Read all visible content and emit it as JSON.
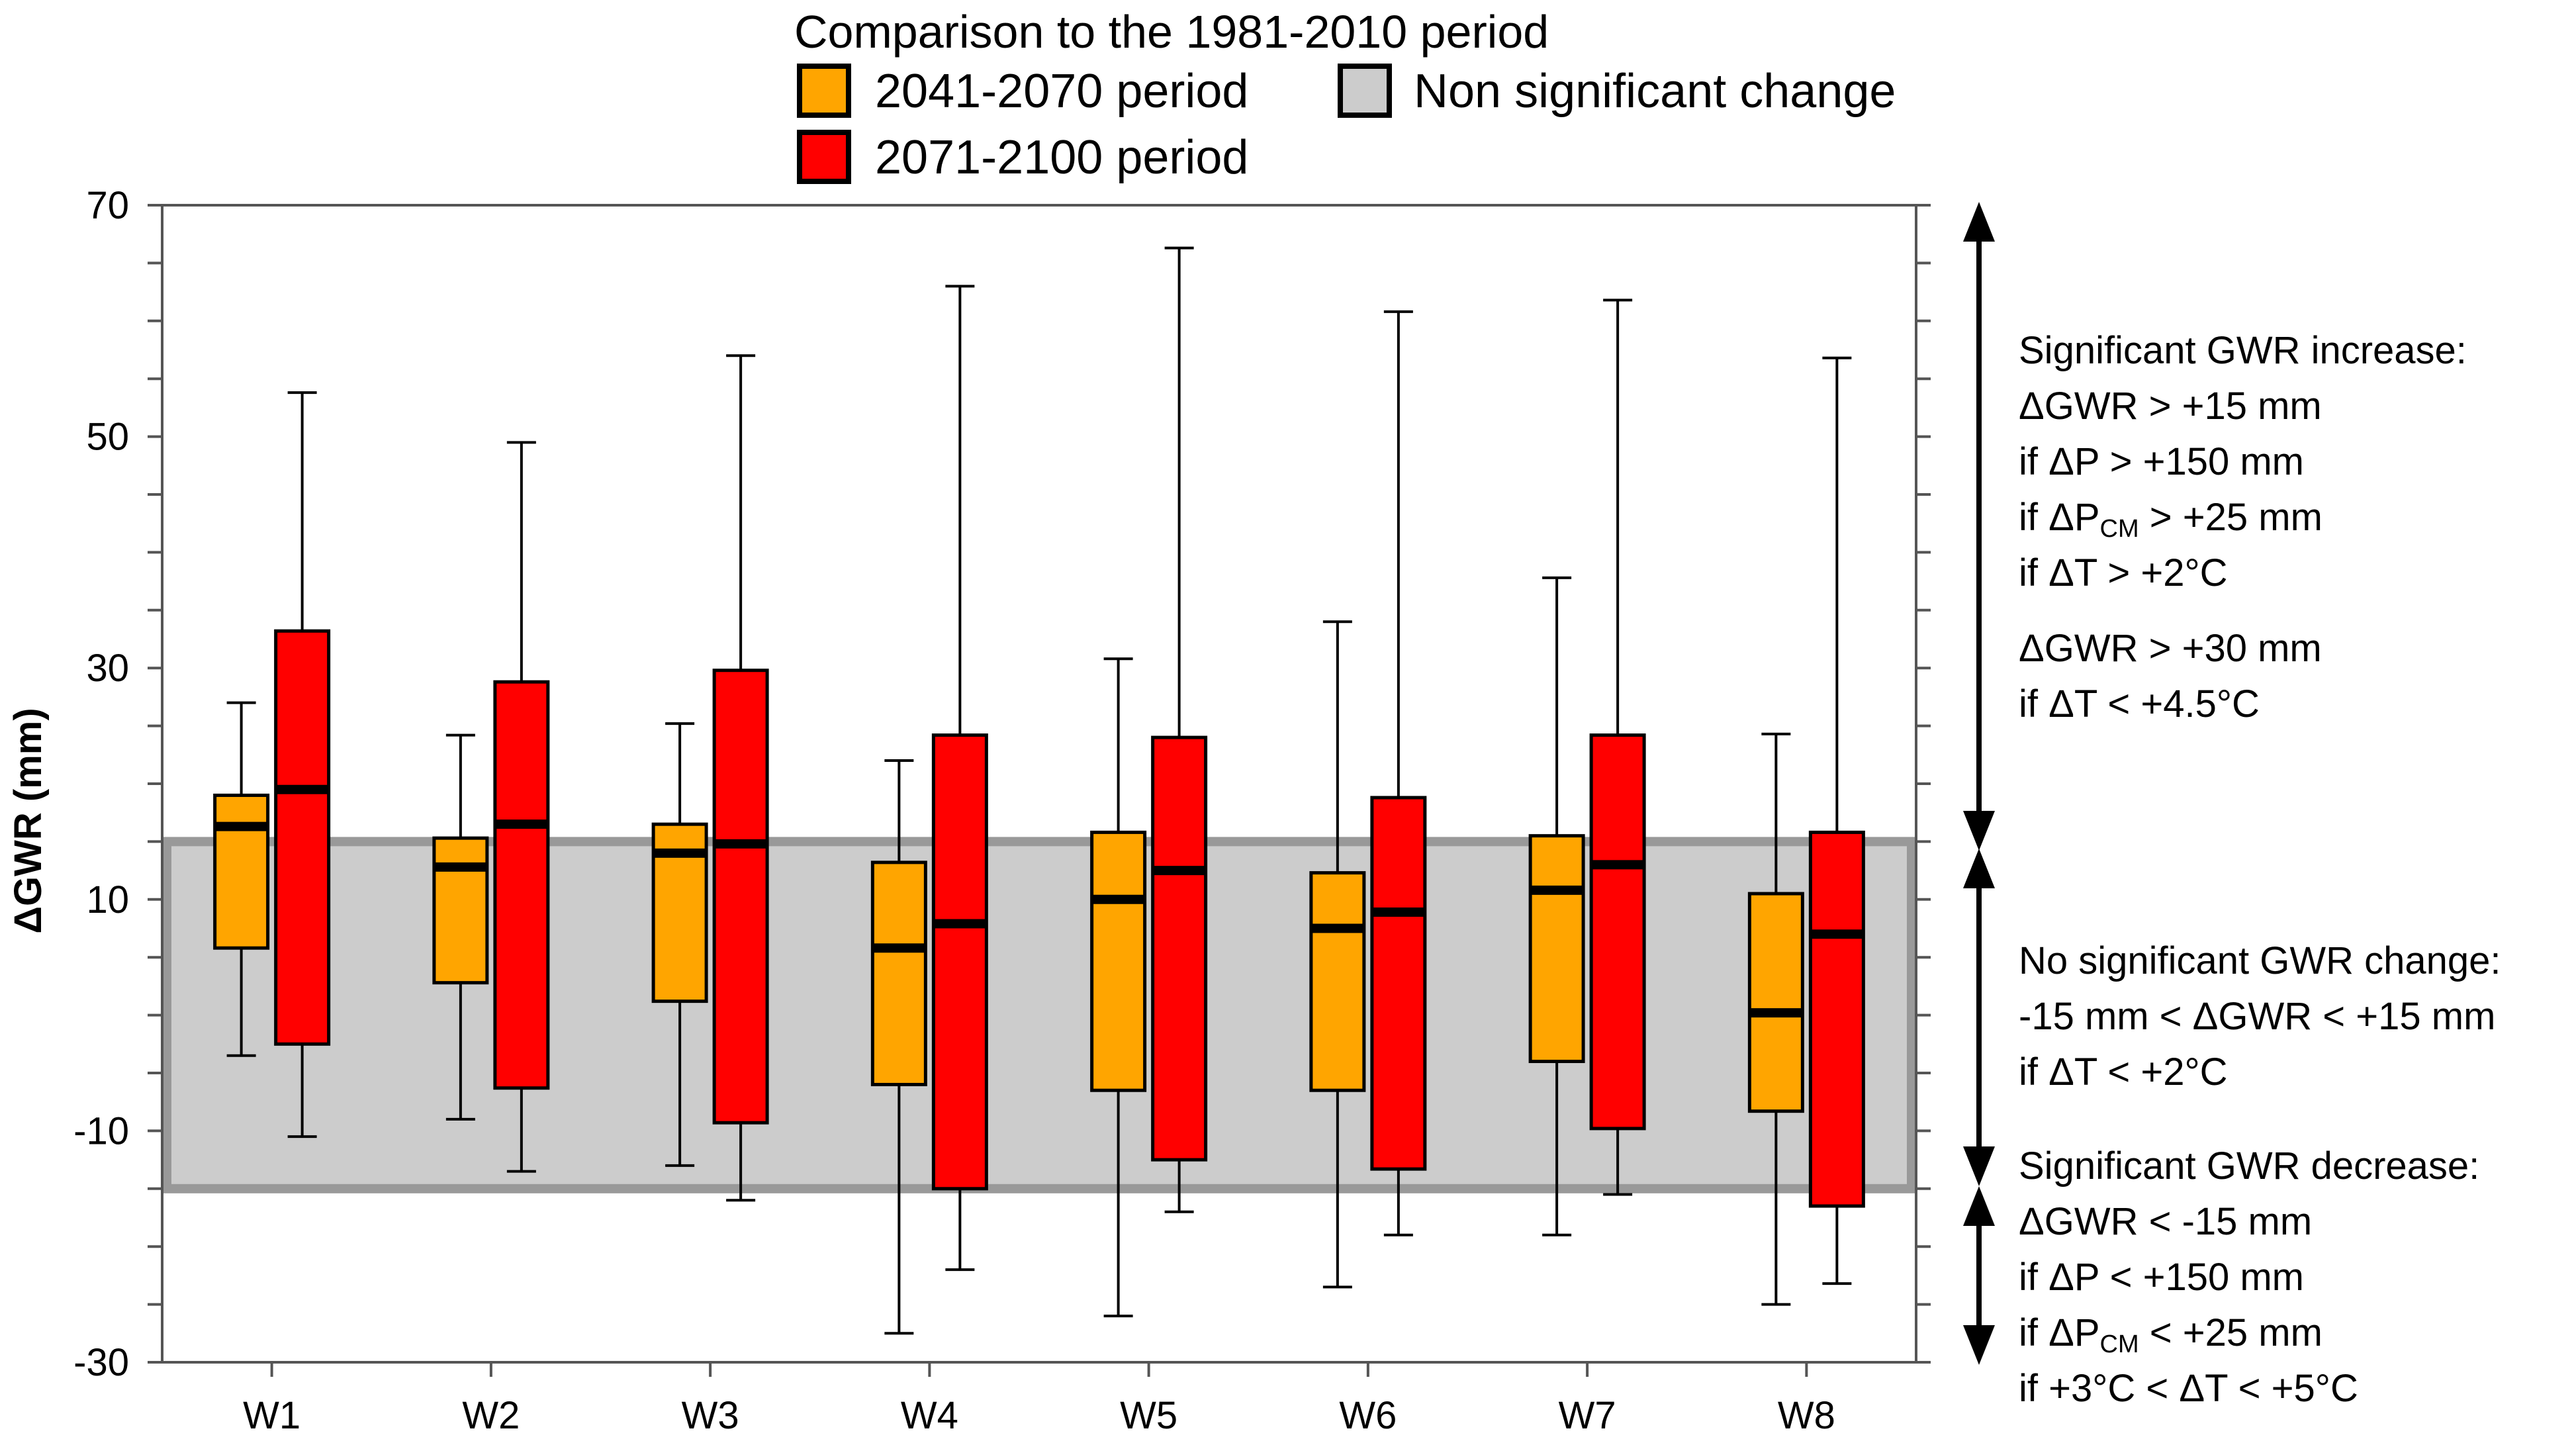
{
  "chart_data": {
    "type": "boxplot",
    "title": "Comparison to the 1981-2010 period",
    "xlabel": "",
    "ylabel": "ΔGWR (mm)",
    "ylim": [
      -30,
      70
    ],
    "yticks": [
      -30,
      -10,
      10,
      30,
      50,
      70
    ],
    "categories": [
      "W1",
      "W2",
      "W3",
      "W4",
      "W5",
      "W6",
      "W7",
      "W8"
    ],
    "significance_band": {
      "label": "Non significant change",
      "low": -15,
      "high": 15,
      "color": "#cccccc"
    },
    "series": [
      {
        "name": "2041-2070 period",
        "color": "#ffa500",
        "boxes": [
          {
            "min": -3.5,
            "q1": 5.8,
            "median": 16.3,
            "q3": 19.0,
            "max": 27.0
          },
          {
            "min": -9.0,
            "q1": 2.8,
            "median": 12.8,
            "q3": 15.3,
            "max": 24.2
          },
          {
            "min": -13.0,
            "q1": 1.2,
            "median": 14.0,
            "q3": 16.5,
            "max": 25.2
          },
          {
            "min": -27.5,
            "q1": -6.0,
            "median": 5.8,
            "q3": 13.2,
            "max": 22.0
          },
          {
            "min": -26.0,
            "q1": -6.5,
            "median": 10.0,
            "q3": 15.8,
            "max": 30.8
          },
          {
            "min": -23.5,
            "q1": -6.5,
            "median": 7.5,
            "q3": 12.3,
            "max": 34.0
          },
          {
            "min": -19.0,
            "q1": -4.0,
            "median": 10.8,
            "q3": 15.5,
            "max": 37.8
          },
          {
            "min": -25.0,
            "q1": -8.3,
            "median": 0.2,
            "q3": 10.5,
            "max": 24.3
          }
        ]
      },
      {
        "name": "2071-2100 period",
        "color": "#ff0000",
        "boxes": [
          {
            "min": -10.5,
            "q1": -2.5,
            "median": 19.5,
            "q3": 33.2,
            "max": 53.8
          },
          {
            "min": -13.5,
            "q1": -6.3,
            "median": 16.5,
            "q3": 28.8,
            "max": 49.5
          },
          {
            "min": -16.0,
            "q1": -9.3,
            "median": 14.8,
            "q3": 29.8,
            "max": 57.0
          },
          {
            "min": -22.0,
            "q1": -15.0,
            "median": 7.9,
            "q3": 24.2,
            "max": 63.0
          },
          {
            "min": -17.0,
            "q1": -12.5,
            "median": 12.5,
            "q3": 24.0,
            "max": 66.3
          },
          {
            "min": -19.0,
            "q1": -13.3,
            "median": 8.9,
            "q3": 18.8,
            "max": 60.8
          },
          {
            "min": -15.5,
            "q1": -9.8,
            "median": 13.0,
            "q3": 24.2,
            "max": 61.8
          },
          {
            "min": -23.2,
            "q1": -16.5,
            "median": 7.0,
            "q3": 15.8,
            "max": 56.8
          }
        ]
      }
    ],
    "legend_position": "top"
  },
  "annotations": {
    "increase": {
      "heading": "Significant GWR increase:",
      "line1": "ΔGWR > +15 mm",
      "line2": "if ΔP > +150 mm",
      "line3_pre": "if ΔP",
      "line3_sub": "CM",
      "line3_post": " > +25 mm",
      "line4": "if ΔT > +2°C",
      "line5": "ΔGWR > +30 mm",
      "line6": "if ΔT < +4.5°C"
    },
    "nochange": {
      "heading": "No significant GWR change:",
      "line1": "-15 mm < ΔGWR < +15 mm",
      "line2": "if ΔT < +2°C"
    },
    "decrease": {
      "heading": "Significant GWR decrease:",
      "line1": "ΔGWR < -15 mm",
      "line2": "if ΔP < +150 mm",
      "line3_pre": "if ΔP",
      "line3_sub": "CM",
      "line3_post": " < +25 mm",
      "line4": "if +3°C < ΔT < +5°C"
    }
  }
}
